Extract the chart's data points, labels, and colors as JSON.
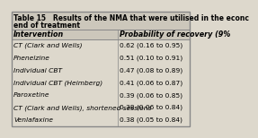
{
  "title_line1": "Table 15   Results of the NMA that were utilised in the econc",
  "title_line2": "end of treatment",
  "col1_header": "Intervention",
  "col2_header": "Probability of recovery (9%",
  "rows": [
    [
      "CT (Clark and Wells)",
      "0.62 (0.16 to 0.95)"
    ],
    [
      "Phenelzine",
      "0.51 (0.10 to 0.91)"
    ],
    [
      "Individual CBT",
      "0.47 (0.08 to 0.89)"
    ],
    [
      "Individual CBT (Heimberg)",
      "0.41 (0.06 to 0.87)"
    ],
    [
      "Paroxetine",
      "0.39 (0.06 to 0.85)"
    ],
    [
      "CT (Clark and Wells), shortened sessions",
      "0.38 (0.06 to 0.84)"
    ],
    [
      "Venlafaxine",
      "0.38 (0.05 to 0.84)"
    ]
  ],
  "bg_color": "#ddd8cc",
  "header_row_bg": "#ccc7bb",
  "title_bg": "#ccc7bb",
  "border_color": "#888888",
  "text_color": "#000000",
  "title_fontsize": 5.5,
  "header_fontsize": 5.8,
  "row_fontsize": 5.4,
  "col_split": 0.595
}
